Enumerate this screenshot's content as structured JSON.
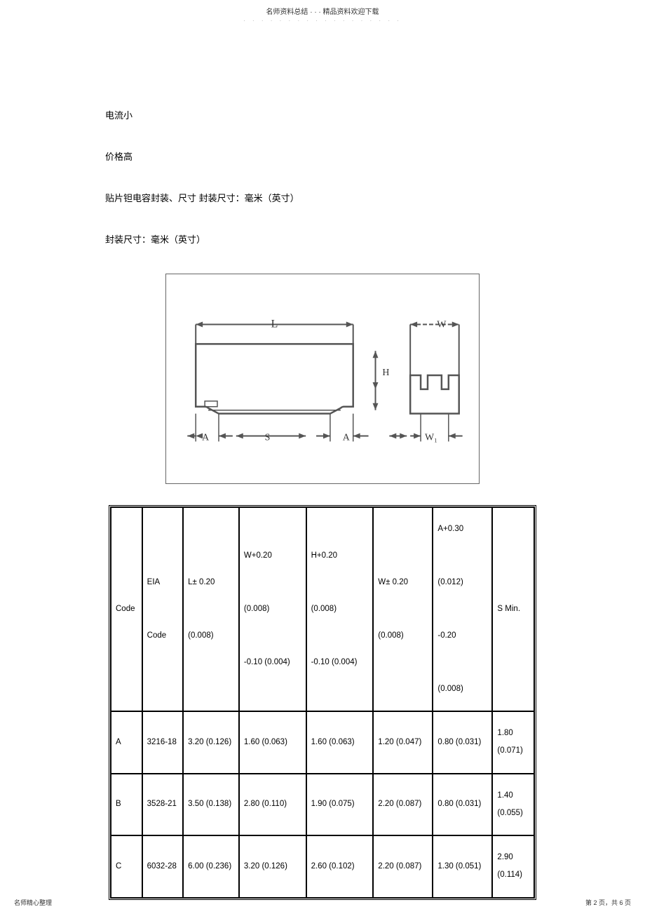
{
  "header": {
    "title": "名师资料总结 · · · 精品资料欢迎下载",
    "dots": "· · · · · · · · · · · · · · · · · ·"
  },
  "body": {
    "line1": "电流小",
    "line2": "价格高",
    "line3": "贴片钽电容封装、尺寸      封装尺寸：毫米（英寸）",
    "line4": "封装尺寸：毫米（英寸）"
  },
  "diagram": {
    "labels": {
      "L": "L",
      "W": "W",
      "H": "H",
      "A1": "A",
      "S": "S",
      "A2": "A",
      "W1": "W₁"
    },
    "stroke_color": "#555555",
    "stroke_width": 2
  },
  "table": {
    "headers": {
      "code": "Code",
      "eia": "EIA\n\nCode",
      "l": "L± 0.20\n\n(0.008)",
      "w": "W+0.20\n\n(0.008)\n\n-0.10 (0.004)",
      "h": "H+0.20\n\n(0.008)\n\n-0.10 (0.004)",
      "w1": "W± 0.20\n\n(0.008)",
      "a": "A+0.30\n\n(0.012)\n\n-0.20\n\n(0.008)",
      "s": "S Min."
    },
    "rows": [
      {
        "code": "A",
        "eia": "3216-18",
        "l": "3.20 (0.126)",
        "w": "1.60 (0.063)",
        "h": "1.60 (0.063)",
        "w1": "1.20 (0.047)",
        "a": "0.80 (0.031)",
        "s": "1.80 (0.071)"
      },
      {
        "code": "B",
        "eia": "3528-21",
        "l": "3.50 (0.138)",
        "w": "2.80 (0.110)",
        "h": "1.90 (0.075)",
        "w1": "2.20 (0.087)",
        "a": "0.80 (0.031)",
        "s": "1.40 (0.055)"
      },
      {
        "code": "C",
        "eia": "6032-28",
        "l": "6.00 (0.236)",
        "w": "3.20 (0.126)",
        "h": "2.60 (0.102)",
        "w1": "2.20 (0.087)",
        "a": "1.30 (0.051)",
        "s": "2.90 (0.114)"
      }
    ]
  },
  "footer": {
    "left": "名师精心整理",
    "right": "第 2 页，共 6 页"
  }
}
